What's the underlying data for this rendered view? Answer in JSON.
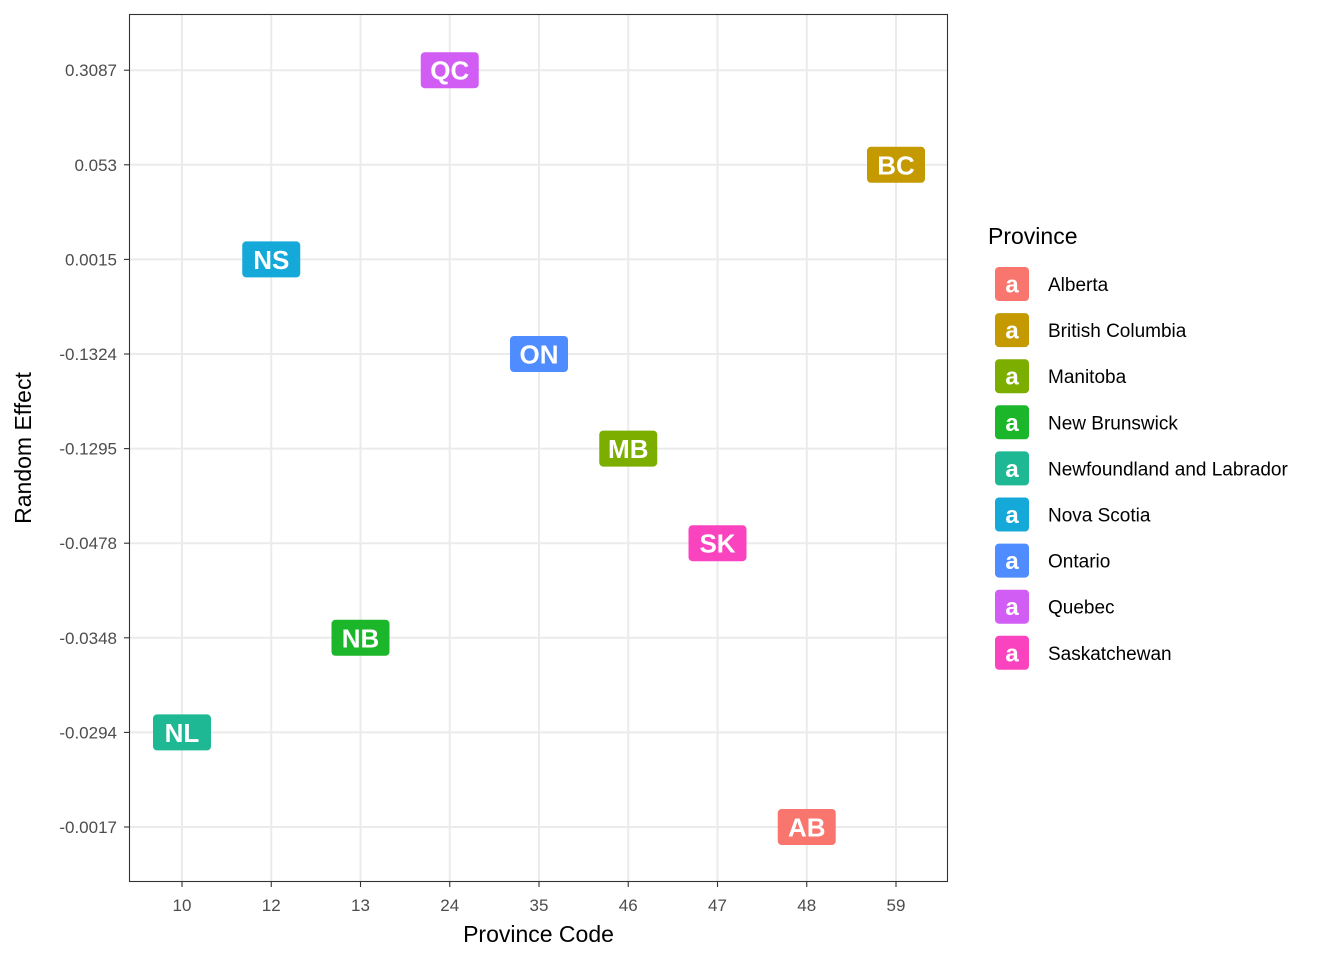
{
  "chart_data": {
    "type": "scatter",
    "xlabel": "Province Code",
    "ylabel": "Random Effect",
    "x_axis_type": "categorical",
    "y_axis_type": "categorical",
    "x_categories": [
      "10",
      "12",
      "13",
      "24",
      "35",
      "46",
      "47",
      "48",
      "59"
    ],
    "y_categories": [
      "-0.0017",
      "-0.0294",
      "-0.0348",
      "-0.0478",
      "-0.1295",
      "-0.1324",
      "0.0015",
      "0.053",
      "0.3087"
    ],
    "grid": true,
    "legend": {
      "title": "Province",
      "placement": "right",
      "key_glyph": "a"
    },
    "points": [
      {
        "label": "AB",
        "province": "Alberta",
        "x": "48",
        "y": "-0.0017",
        "color": "#F8766D"
      },
      {
        "label": "BC",
        "province": "British Columbia",
        "x": "59",
        "y": "0.053",
        "color": "#C49A00"
      },
      {
        "label": "MB",
        "province": "Manitoba",
        "x": "46",
        "y": "-0.1295",
        "color": "#7CAE00"
      },
      {
        "label": "NB",
        "province": "New Brunswick",
        "x": "13",
        "y": "-0.0348",
        "color": "#1CB62A"
      },
      {
        "label": "NL",
        "province": "Newfoundland and Labrador",
        "x": "10",
        "y": "-0.0294",
        "color": "#1EB994"
      },
      {
        "label": "NS",
        "province": "Nova Scotia",
        "x": "12",
        "y": "0.0015",
        "color": "#14A9D9"
      },
      {
        "label": "ON",
        "province": "Ontario",
        "x": "35",
        "y": "-0.1324",
        "color": "#4F8CFF"
      },
      {
        "label": "QC",
        "province": "Quebec",
        "x": "24",
        "y": "0.3087",
        "color": "#D25DF4"
      },
      {
        "label": "SK",
        "province": "Saskatchewan",
        "x": "47",
        "y": "-0.0478",
        "color": "#FA44BF"
      }
    ]
  }
}
